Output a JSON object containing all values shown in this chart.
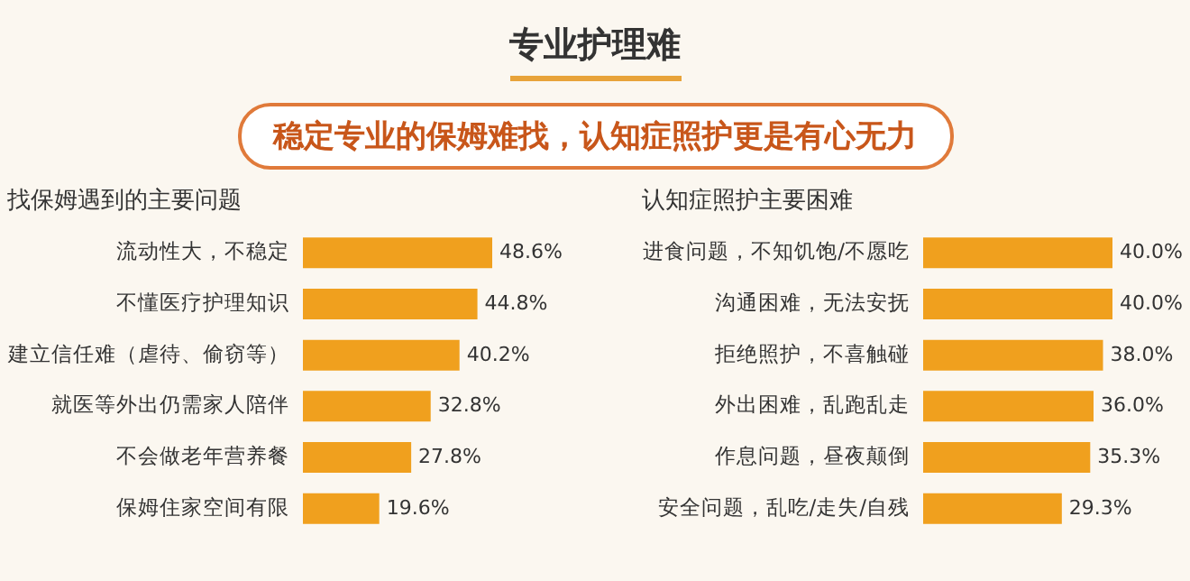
{
  "chart_data": [
    {
      "type": "other",
      "title": "专业护理难",
      "subtitle": "稳定专业的保姆难找，认知症照护更是有心无力"
    },
    {
      "type": "bar",
      "orientation": "horizontal",
      "title": "找保姆遇到的主要问题",
      "categories": [
        "流动性大，不稳定",
        "不懂医疗护理知识",
        "建立信任难（虐待、偷窃等）",
        "就医等外出仍需家人陪伴",
        "不会做老年营养餐",
        "保姆住家空间有限"
      ],
      "values": [
        48.6,
        44.8,
        40.2,
        32.8,
        27.8,
        19.6
      ],
      "value_labels": [
        "48.6%",
        "44.8%",
        "40.2%",
        "32.8%",
        "27.8%",
        "19.6%"
      ],
      "color": "#f0a01e"
    },
    {
      "type": "bar",
      "orientation": "horizontal",
      "title": "认知症照护主要困难",
      "categories": [
        "进食问题，不知饥饱/不愿吃",
        "沟通困难，无法安抚",
        "拒绝照护，不喜触碰",
        "外出困难，乱跑乱走",
        "作息问题，昼夜颠倒",
        "安全问题，乱吃/走失/自残"
      ],
      "values": [
        40.0,
        40.0,
        38.0,
        36.0,
        35.3,
        29.3
      ],
      "value_labels": [
        "40.0%",
        "40.0%",
        "38.0%",
        "36.0%",
        "35.3%",
        "29.3%"
      ],
      "color": "#f0a01e"
    }
  ]
}
